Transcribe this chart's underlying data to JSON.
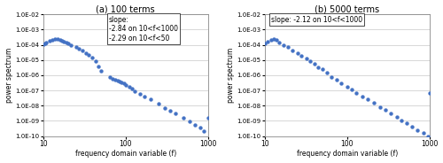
{
  "title_a": "(a) 100 terms",
  "title_b": "(b) 5000 terms",
  "xlabel": "frequency domain variable (f)",
  "ylabel": "power spectrum",
  "xlim": [
    10,
    1000
  ],
  "ylim_log_min": -10,
  "ylim_log_max": -2,
  "annotation_a": "slope:\n-2.84 on 10<f<1000\n-2.29 on 10<f<50",
  "annotation_b": "slope: -2.12 on 10<f<1000",
  "dot_color": "#4472C4",
  "dot_size": 10,
  "background_color": "#ffffff",
  "grid_color": "#c8c8c8",
  "data_a_x": [
    10,
    10.5,
    11,
    12,
    13,
    14,
    15,
    16,
    17,
    18,
    19,
    20,
    22,
    25,
    27,
    30,
    33,
    36,
    39,
    43,
    47,
    50,
    65,
    70,
    75,
    80,
    85,
    90,
    95,
    100,
    110,
    120,
    130,
    150,
    170,
    200,
    250,
    300,
    350,
    400,
    500,
    600,
    700,
    800,
    900,
    1000
  ],
  "data_a_y": [
    0.00011,
    0.00013,
    0.00015,
    0.00018,
    0.00021,
    0.00023,
    0.00024,
    0.00022,
    0.00019,
    0.00016,
    0.00014,
    0.00012,
    9e-05,
    7e-05,
    5.5e-05,
    4e-05,
    3e-05,
    2.2e-05,
    1.5e-05,
    9e-06,
    4e-06,
    2e-06,
    8e-07,
    6e-07,
    5e-07,
    4.5e-07,
    3.8e-07,
    3.2e-07,
    2.8e-07,
    2.4e-07,
    1.8e-07,
    1.3e-07,
    9e-08,
    6e-08,
    4e-08,
    2.5e-08,
    1.3e-08,
    7e-09,
    4.5e-09,
    3e-09,
    1.5e-09,
    9e-10,
    5.5e-10,
    3.5e-10,
    2.2e-10,
    1.5e-09
  ],
  "data_b_x": [
    10,
    11,
    12,
    13,
    14,
    15,
    17,
    19,
    22,
    25,
    28,
    32,
    36,
    40,
    45,
    50,
    57,
    65,
    75,
    85,
    100,
    115,
    130,
    155,
    180,
    210,
    250,
    290,
    340,
    400,
    460,
    530,
    620,
    720,
    840,
    950,
    1000
  ],
  "data_b_y": [
    0.00012,
    0.00016,
    0.00022,
    0.00026,
    0.0002,
    0.00015,
    0.0001,
    7e-05,
    4.5e-05,
    3e-05,
    2e-05,
    1.3e-05,
    8e-06,
    5.5e-06,
    3.5e-06,
    2.5e-06,
    1.5e-06,
    8e-07,
    5e-07,
    3e-07,
    1.8e-07,
    1.1e-07,
    7e-08,
    4e-08,
    2.5e-08,
    1.5e-08,
    8e-09,
    5e-09,
    3e-09,
    1.8e-09,
    1.1e-09,
    7e-10,
    4e-10,
    2.5e-10,
    1.5e-10,
    1e-10,
    7e-08
  ]
}
